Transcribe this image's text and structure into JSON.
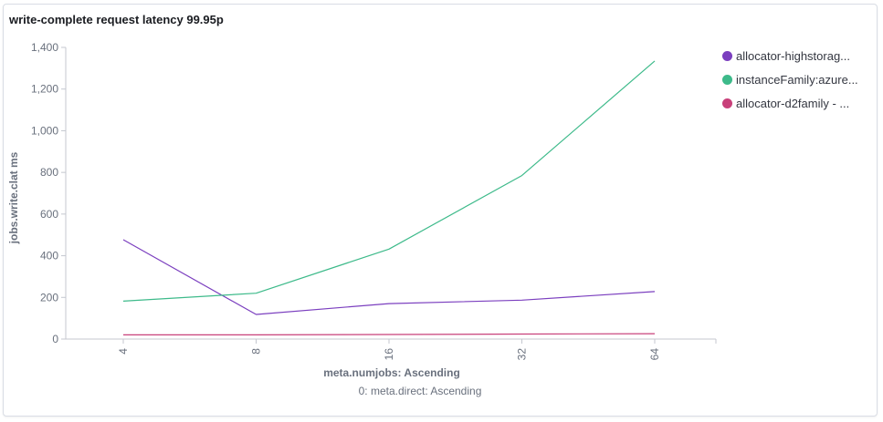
{
  "panel": {
    "title": "write-complete request latency 99.95p"
  },
  "chart_data": {
    "type": "line",
    "categories": [
      "4",
      "8",
      "16",
      "32",
      "64"
    ],
    "ylim": [
      0,
      1400
    ],
    "yticks": [
      0,
      200,
      400,
      600,
      800,
      1000,
      1200,
      1400
    ],
    "ytick_labels": [
      "0",
      "200",
      "400",
      "600",
      "800",
      "1,000",
      "1,200",
      "1,400"
    ],
    "ylabel": "jobs.write.clat ms",
    "xlabel": "meta.numjobs: Ascending",
    "xlabel_sub": "0: meta.direct: Ascending",
    "grid": false,
    "legend_position": "right",
    "series": [
      {
        "name": "allocator-highstorag...",
        "color": "#7b3fbf",
        "values": [
          477,
          118,
          170,
          187,
          228
        ]
      },
      {
        "name": "instanceFamily:azure...",
        "color": "#3dba8a",
        "values": [
          182,
          220,
          432,
          785,
          1335
        ]
      },
      {
        "name": "allocator-d2family - ...",
        "color": "#c8407a",
        "values": [
          20,
          20,
          22,
          24,
          26
        ]
      }
    ]
  }
}
